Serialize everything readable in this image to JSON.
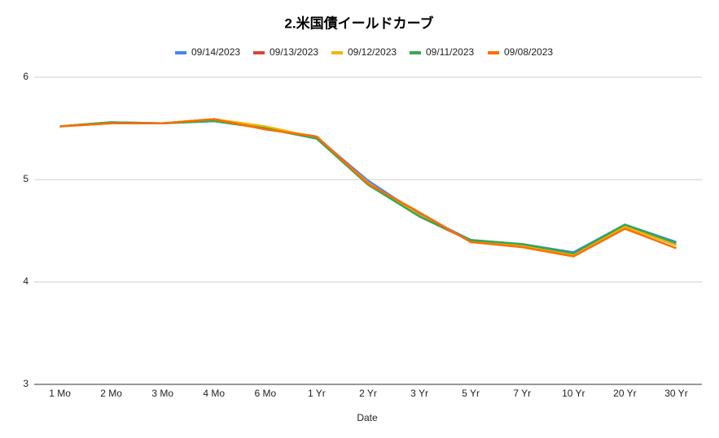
{
  "chart_data": {
    "type": "line",
    "title": "2.米国債イールドカーブ",
    "x_label": "Date",
    "categories": [
      "1 Mo",
      "2 Mo",
      "3 Mo",
      "4 Mo",
      "6 Mo",
      "1 Yr",
      "2 Yr",
      "3 Yr",
      "5 Yr",
      "7 Yr",
      "10 Yr",
      "20 Yr",
      "30 Yr"
    ],
    "series": [
      {
        "name": "09/14/2023",
        "color": "#4285f4",
        "values": [
          5.52,
          5.56,
          5.55,
          5.58,
          5.5,
          5.41,
          4.99,
          4.66,
          4.41,
          4.37,
          4.29,
          4.56,
          4.39
        ]
      },
      {
        "name": "09/13/2023",
        "color": "#db4437",
        "values": [
          5.52,
          5.55,
          5.55,
          5.59,
          5.5,
          5.42,
          4.97,
          4.64,
          4.4,
          4.36,
          4.27,
          4.54,
          4.36
        ]
      },
      {
        "name": "09/12/2023",
        "color": "#f4b400",
        "values": [
          5.52,
          5.55,
          5.55,
          5.59,
          5.52,
          5.41,
          4.97,
          4.65,
          4.4,
          4.35,
          4.27,
          4.54,
          4.36
        ]
      },
      {
        "name": "09/11/2023",
        "color": "#34a853",
        "values": [
          5.52,
          5.56,
          5.55,
          5.57,
          5.5,
          5.4,
          4.95,
          4.64,
          4.41,
          4.37,
          4.28,
          4.56,
          4.38
        ]
      },
      {
        "name": "09/08/2023",
        "color": "#ff6d01",
        "values": [
          5.52,
          5.55,
          5.55,
          5.59,
          5.49,
          5.42,
          4.96,
          4.68,
          4.39,
          4.34,
          4.25,
          4.52,
          4.33
        ]
      }
    ],
    "ylim": [
      3,
      6
    ],
    "yticks": [
      3,
      4,
      5,
      6
    ],
    "grid": true,
    "legend": "top"
  }
}
